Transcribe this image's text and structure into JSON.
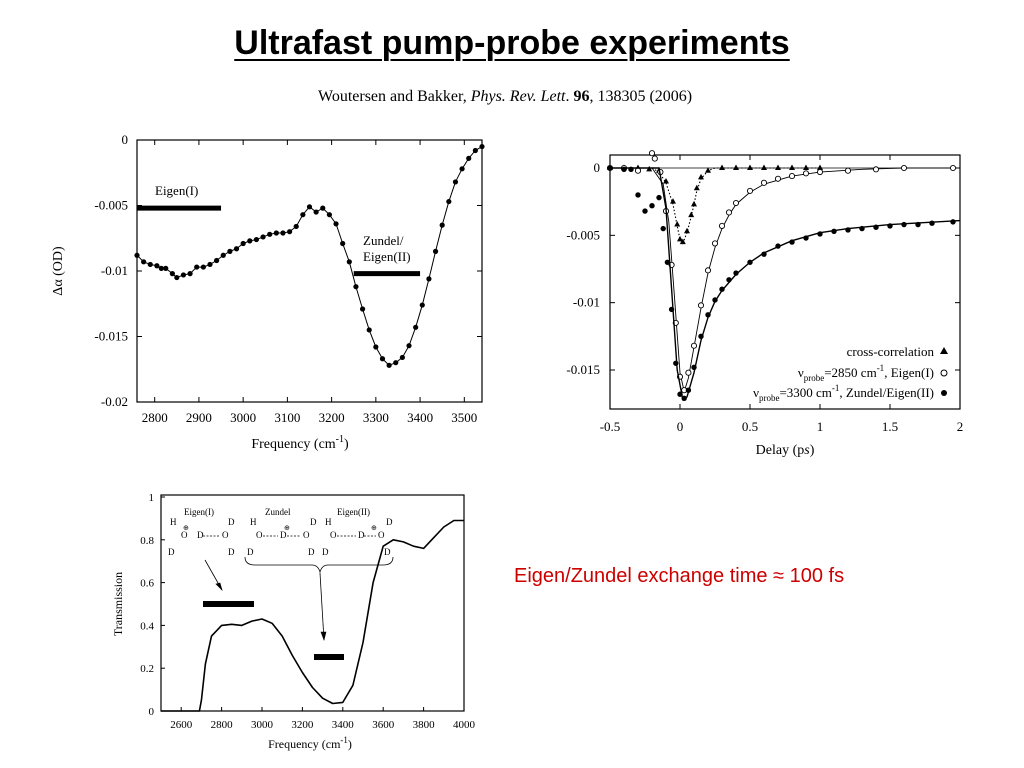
{
  "title": "Ultrafast pump-probe experiments",
  "citation": {
    "authors": "Woutersen and Bakker, ",
    "journal": "Phys. Rev. Lett",
    "dot": ". ",
    "volume": "96",
    "rest": ", 138305 (2006)"
  },
  "exchange_text": "Eigen/Zundel exchange time ≈ 100 fs",
  "colors": {
    "accent_red": "#cc0000",
    "ink": "#000000"
  },
  "chart_data": [
    {
      "type": "line",
      "xlabel": "Frequency (cm-1)",
      "ylabel": "Δα (OD)",
      "xlim": [
        2760,
        3540
      ],
      "ylim": [
        -0.02,
        0
      ],
      "x_ticks": [
        "2800",
        "2900",
        "3000",
        "3100",
        "3200",
        "3300",
        "3400",
        "3500"
      ],
      "y_ticks": [
        "0",
        "-0.005",
        "-0.01",
        "-0.015",
        "-0.02"
      ],
      "annotations": [
        {
          "label": "Eigen(I)",
          "bar": [
            2760,
            2950
          ],
          "y": -0.0052
        },
        {
          "label_lines": [
            "Zundel/",
            "Eigen(II)"
          ],
          "bar": [
            3250,
            3400
          ],
          "y": -0.0102
        }
      ],
      "series": [
        {
          "x": [
            2760,
            2775,
            2790,
            2805,
            2815,
            2825,
            2840,
            2850,
            2865,
            2880,
            2895,
            2910,
            2925,
            2940,
            2955,
            2970,
            2985,
            3000,
            3015,
            3030,
            3045,
            3060,
            3075,
            3090,
            3105,
            3120,
            3135,
            3150,
            3165,
            3180,
            3195,
            3210,
            3225,
            3240,
            3255,
            3270,
            3285,
            3300,
            3315,
            3330,
            3345,
            3360,
            3375,
            3390,
            3405,
            3420,
            3435,
            3450,
            3465,
            3480,
            3495,
            3510,
            3525,
            3540
          ],
          "y": [
            -0.0088,
            -0.0093,
            -0.0095,
            -0.0096,
            -0.0098,
            -0.0098,
            -0.0102,
            -0.0105,
            -0.0103,
            -0.0102,
            -0.0097,
            -0.0097,
            -0.0095,
            -0.0092,
            -0.0088,
            -0.0085,
            -0.0083,
            -0.0079,
            -0.0077,
            -0.0076,
            -0.0074,
            -0.0072,
            -0.0071,
            -0.0071,
            -0.007,
            -0.0066,
            -0.0057,
            -0.0051,
            -0.0055,
            -0.0052,
            -0.0057,
            -0.0064,
            -0.0079,
            -0.0093,
            -0.0112,
            -0.0129,
            -0.0145,
            -0.0158,
            -0.0167,
            -0.0172,
            -0.017,
            -0.0166,
            -0.0157,
            -0.0143,
            -0.0126,
            -0.0106,
            -0.0085,
            -0.0065,
            -0.0047,
            -0.0032,
            -0.0022,
            -0.0014,
            -0.0008,
            -0.0005
          ]
        }
      ]
    },
    {
      "type": "line",
      "xlabel": "Delay (ps)",
      "ylabel": "",
      "xlim": [
        -0.5,
        2
      ],
      "ylim": [
        -0.018,
        0.001
      ],
      "x_ticks": [
        "-0.5",
        "0",
        "0.5",
        "1",
        "1.5",
        "2"
      ],
      "y_ticks": [
        "0",
        "-0.005",
        "-0.01",
        "-0.015"
      ],
      "legend": "bottom-right",
      "series": [
        {
          "name": "cross-correlation",
          "marker": "triangle",
          "x": [
            -0.5,
            -0.4,
            -0.3,
            -0.22,
            -0.15,
            -0.1,
            -0.05,
            -0.02,
            0.0,
            0.02,
            0.05,
            0.08,
            0.1,
            0.12,
            0.15,
            0.2,
            0.3,
            0.4,
            0.5,
            0.6,
            0.7,
            0.8,
            0.9,
            1.0
          ],
          "y": [
            0,
            0,
            0,
            -0.0001,
            -0.0002,
            -0.001,
            -0.0025,
            -0.0042,
            -0.0053,
            -0.0055,
            -0.0047,
            -0.0035,
            -0.0027,
            -0.0015,
            -0.0007,
            -0.0002,
            0,
            0,
            0,
            0,
            0,
            0,
            0,
            0
          ],
          "fit_x": [
            -0.2,
            -0.15,
            -0.1,
            -0.05,
            -0.02,
            0.0,
            0.02,
            0.05,
            0.08,
            0.1,
            0.12,
            0.15,
            0.2,
            0.25,
            1.0
          ],
          "fit_y": [
            0,
            -0.0003,
            -0.0011,
            -0.0027,
            -0.0043,
            -0.0053,
            -0.0056,
            -0.0048,
            -0.0036,
            -0.0027,
            -0.0017,
            -0.0008,
            -0.0002,
            0,
            0
          ]
        },
        {
          "name": "νprobe=2850 cm-1, Eigen(I)",
          "marker": "circle-open",
          "x": [
            -0.5,
            -0.4,
            -0.3,
            -0.2,
            -0.18,
            -0.14,
            -0.1,
            -0.06,
            -0.03,
            0.0,
            0.03,
            0.06,
            0.1,
            0.15,
            0.2,
            0.25,
            0.3,
            0.35,
            0.4,
            0.5,
            0.6,
            0.7,
            0.8,
            0.9,
            1.0,
            1.2,
            1.4,
            1.6,
            1.95
          ],
          "y": [
            0,
            0,
            -0.0002,
            0.0011,
            0.0007,
            -0.0003,
            -0.0032,
            -0.0072,
            -0.0115,
            -0.0155,
            -0.0165,
            -0.0152,
            -0.0132,
            -0.0102,
            -0.0076,
            -0.0056,
            -0.0043,
            -0.0033,
            -0.0026,
            -0.0017,
            -0.0011,
            -0.0008,
            -0.0006,
            -0.0004,
            -0.0003,
            -0.0002,
            -0.0001,
            0,
            0
          ],
          "fit_x": [
            -0.5,
            -0.2,
            -0.12,
            -0.08,
            -0.04,
            0.0,
            0.03,
            0.06,
            0.1,
            0.15,
            0.2,
            0.25,
            0.3,
            0.35,
            0.4,
            0.5,
            0.6,
            0.8,
            1.0,
            1.3,
            1.6,
            2.0
          ],
          "fit_y": [
            0,
            0,
            -0.0012,
            -0.004,
            -0.0095,
            -0.0152,
            -0.0166,
            -0.0156,
            -0.0133,
            -0.0104,
            -0.0078,
            -0.0059,
            -0.0045,
            -0.0035,
            -0.0027,
            -0.0018,
            -0.0012,
            -0.0006,
            -0.0003,
            -0.0001,
            0,
            0
          ]
        },
        {
          "name": "νprobe=3300 cm-1, Zundel/Eigen(II)",
          "marker": "circle-filled",
          "x": [
            -0.5,
            -0.4,
            -0.35,
            -0.3,
            -0.25,
            -0.2,
            -0.15,
            -0.12,
            -0.09,
            -0.06,
            -0.03,
            0.0,
            0.03,
            0.06,
            0.1,
            0.15,
            0.2,
            0.25,
            0.3,
            0.35,
            0.4,
            0.5,
            0.6,
            0.7,
            0.8,
            0.9,
            1.0,
            1.1,
            1.2,
            1.3,
            1.4,
            1.5,
            1.6,
            1.7,
            1.8,
            1.95
          ],
          "y": [
            0,
            -0.0001,
            -0.0001,
            -0.002,
            -0.0032,
            -0.0028,
            -0.0022,
            -0.0045,
            -0.007,
            -0.0105,
            -0.0145,
            -0.0168,
            -0.0171,
            -0.0165,
            -0.0148,
            -0.0125,
            -0.0109,
            -0.0098,
            -0.009,
            -0.0083,
            -0.0078,
            -0.007,
            -0.0064,
            -0.0058,
            -0.0055,
            -0.0052,
            -0.0049,
            -0.0047,
            -0.0046,
            -0.0045,
            -0.0044,
            -0.0043,
            -0.0042,
            -0.0042,
            -0.0041,
            -0.004
          ],
          "fit_x": [
            -0.5,
            -0.15,
            -0.1,
            -0.06,
            -0.02,
            0.02,
            0.05,
            0.1,
            0.15,
            0.2,
            0.25,
            0.3,
            0.4,
            0.5,
            0.6,
            0.8,
            1.0,
            1.2,
            1.5,
            2.0
          ],
          "fit_y": [
            0,
            0,
            -0.003,
            -0.009,
            -0.015,
            -0.0172,
            -0.017,
            -0.0152,
            -0.0128,
            -0.0111,
            -0.0099,
            -0.0091,
            -0.0079,
            -0.007,
            -0.0063,
            -0.0054,
            -0.0048,
            -0.0045,
            -0.0042,
            -0.0039
          ]
        }
      ]
    },
    {
      "type": "line",
      "xlabel": "Frequency (cm-1)",
      "ylabel": "Transmission",
      "xlim": [
        2500,
        4000
      ],
      "ylim": [
        0,
        1
      ],
      "x_ticks": [
        "2600",
        "2800",
        "3000",
        "3200",
        "3400",
        "3600",
        "3800",
        "4000"
      ],
      "y_ticks": [
        "0",
        "0.2",
        "0.4",
        "0.6",
        "0.8",
        "1"
      ],
      "structure_labels": [
        "Eigen(I)",
        "Zundel",
        "Eigen(II)"
      ],
      "series": [
        {
          "x": [
            2500,
            2690,
            2700,
            2720,
            2750,
            2800,
            2850,
            2900,
            2950,
            3000,
            3050,
            3100,
            3150,
            3200,
            3250,
            3300,
            3350,
            3400,
            3450,
            3500,
            3550,
            3600,
            3650,
            3700,
            3750,
            3800,
            3850,
            3900,
            3950,
            4000
          ],
          "y": [
            0,
            0,
            0.05,
            0.22,
            0.35,
            0.4,
            0.405,
            0.4,
            0.42,
            0.43,
            0.41,
            0.35,
            0.26,
            0.18,
            0.11,
            0.06,
            0.035,
            0.04,
            0.12,
            0.32,
            0.6,
            0.77,
            0.8,
            0.79,
            0.77,
            0.76,
            0.81,
            0.86,
            0.89,
            0.89
          ]
        }
      ]
    }
  ]
}
